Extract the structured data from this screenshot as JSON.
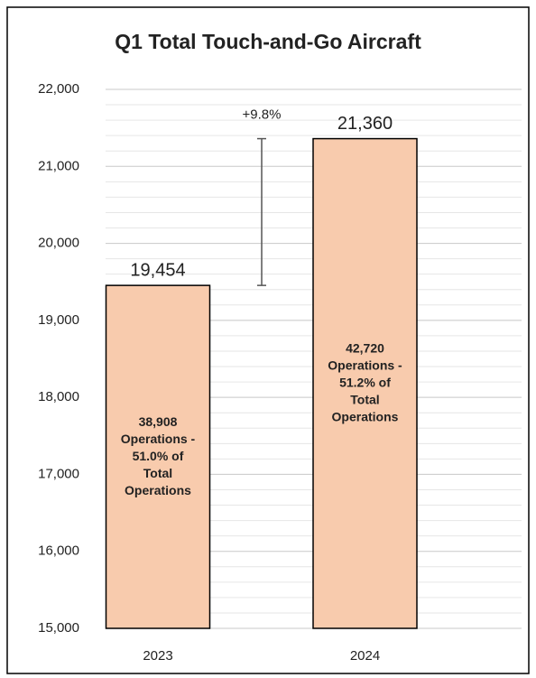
{
  "chart_data": {
    "type": "bar",
    "title": "Q1 Total Touch-and-Go Aircraft",
    "categories": [
      "2023",
      "2024"
    ],
    "values": [
      19454,
      21360
    ],
    "value_labels": [
      "19,454",
      "21,360"
    ],
    "inner_labels": [
      [
        "38,908",
        "Operations -",
        "51.0% of",
        "Total",
        "Operations"
      ],
      [
        "42,720",
        "Operations -",
        "51.2% of",
        "Total",
        "Operations"
      ]
    ],
    "annotations": [
      {
        "text": "+9.8%"
      }
    ],
    "color": "#f8cbad",
    "ylim": [
      15000,
      22000
    ],
    "yticks": [
      {
        "value": 15000,
        "label": "15,000"
      },
      {
        "value": 16000,
        "label": "16,000"
      },
      {
        "value": 17000,
        "label": "17,000"
      },
      {
        "value": 18000,
        "label": "18,000"
      },
      {
        "value": 19000,
        "label": "19,000"
      },
      {
        "value": 20000,
        "label": "20,000"
      },
      {
        "value": 21000,
        "label": "21,000"
      },
      {
        "value": 22000,
        "label": "22,000"
      }
    ],
    "minor_yticks": [
      15200,
      15400,
      15600,
      15800,
      16200,
      16400,
      16600,
      16800,
      17200,
      17400,
      17600,
      17800,
      18200,
      18400,
      18600,
      18800,
      19200,
      19400,
      19600,
      19800,
      20200,
      20400,
      20600,
      20800,
      21200,
      21400,
      21600,
      21800
    ],
    "grid": true
  }
}
